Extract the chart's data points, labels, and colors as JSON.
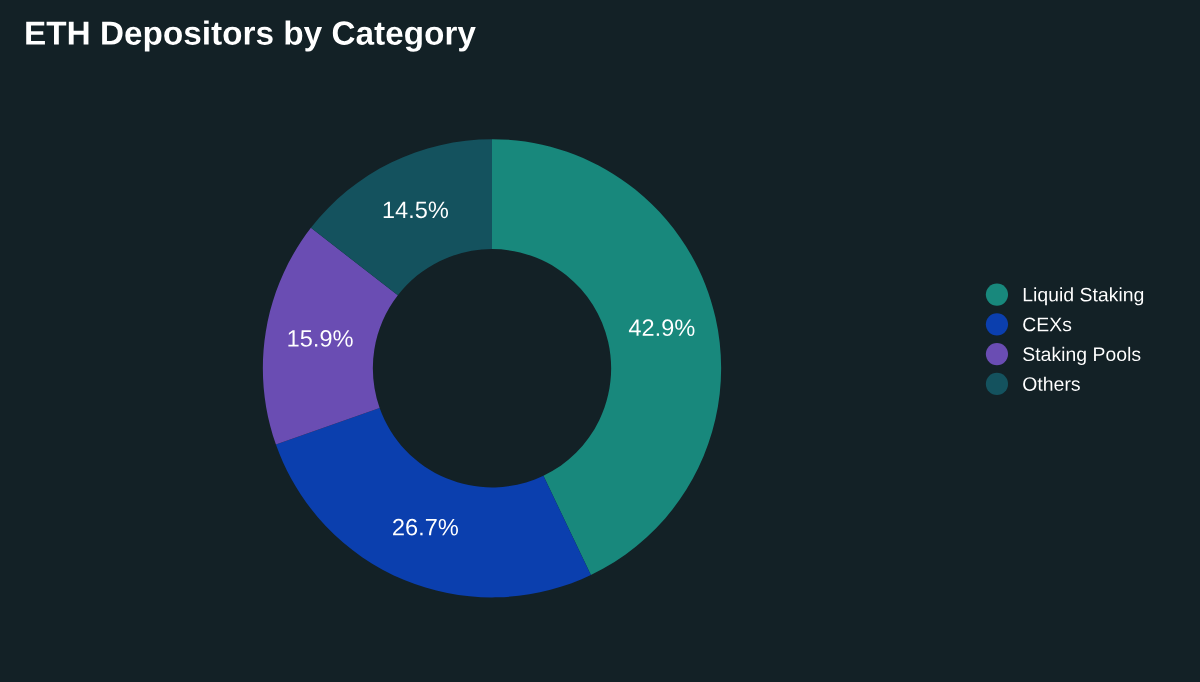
{
  "chart_data": {
    "type": "donut",
    "title": "ETH Depositors by Category",
    "categories": [
      "Liquid Staking",
      "CEXs",
      "Staking Pools",
      "Others"
    ],
    "values": [
      42.9,
      26.7,
      15.9,
      14.5
    ],
    "colors": [
      "#18887c",
      "#0b3fae",
      "#6a4db3",
      "#14525e"
    ],
    "value_labels": [
      "42.9%",
      "26.7%",
      "15.9%",
      "14.5%"
    ],
    "legend": "right"
  }
}
